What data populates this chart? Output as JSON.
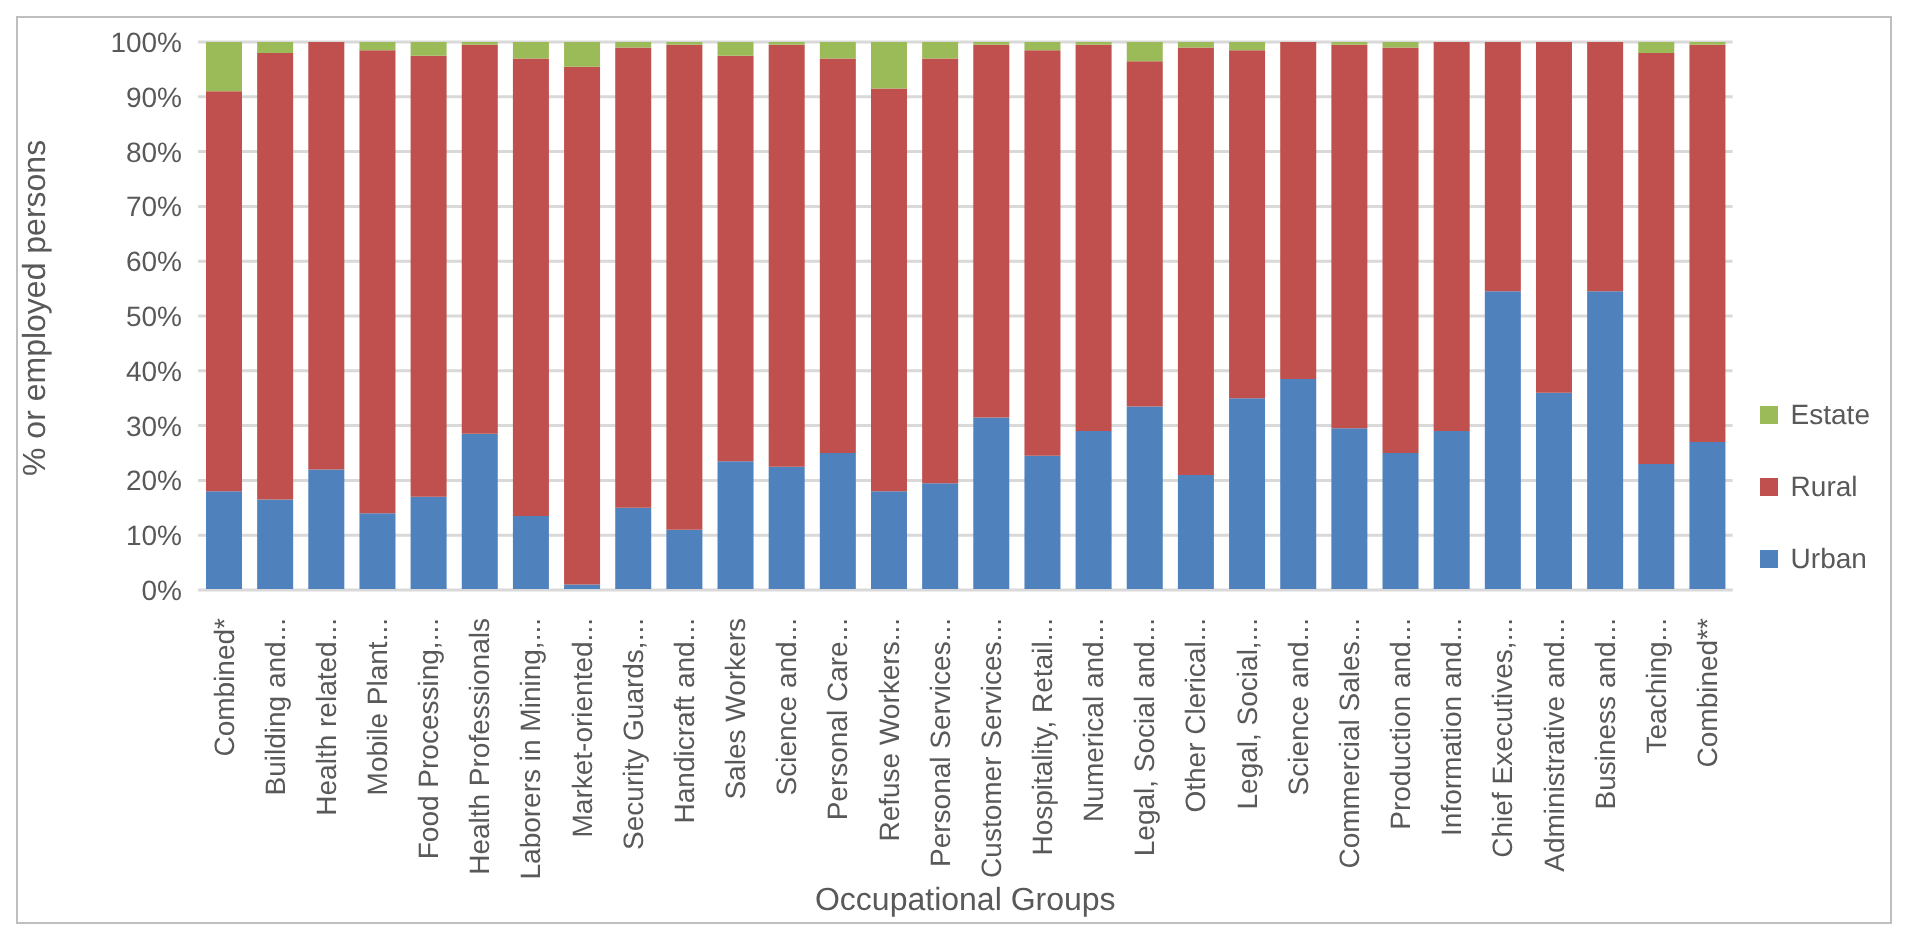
{
  "chart_data": {
    "type": "bar",
    "stacked": true,
    "xlabel": "Occupational Groups",
    "ylabel": "% or employed persons",
    "categories": [
      "Combined*",
      "Building and...",
      "Health related...",
      "Mobile Plant...",
      "Food Processing,...",
      "Health Professionals",
      "Laborers in Mining,...",
      "Market-oriented...",
      "Security Guards,...",
      "Handicraft and...",
      "Sales Workers",
      "Science and...",
      "Personal Care...",
      "Refuse Workers...",
      "Personal Services...",
      "Customer Services...",
      "Hospitality, Retail...",
      "Numerical and...",
      "Legal, Social and...",
      "Other Clerical...",
      "Legal, Social,...",
      "Science and...",
      "Commercial Sales...",
      "Production and...",
      "Information and...",
      "Chief Executives,...",
      "Administrative and...",
      "Business and...",
      "Teaching...",
      "Combined**"
    ],
    "series": [
      {
        "name": "Urban",
        "color": "#4f81bd",
        "values": [
          18,
          16.5,
          22,
          14,
          17,
          28.5,
          13.5,
          1,
          15,
          11,
          23.5,
          22.5,
          25,
          18,
          19.5,
          31.5,
          24.5,
          29,
          33.5,
          21,
          35,
          38.5,
          29.5,
          25,
          29,
          54.5,
          36,
          54.5,
          23,
          27
        ]
      },
      {
        "name": "Rural",
        "color": "#c0504d",
        "values": [
          73,
          81.5,
          78,
          84.5,
          80.5,
          71,
          83.5,
          94.5,
          84,
          88.5,
          74,
          77,
          72,
          73.5,
          77.5,
          68,
          74,
          70.5,
          63,
          78,
          63.5,
          61.5,
          70,
          74,
          71,
          45.5,
          64,
          45.5,
          75,
          72.5
        ]
      },
      {
        "name": "Estate",
        "color": "#9bbb59",
        "values": [
          9,
          2,
          0,
          1.5,
          2.5,
          0.5,
          3,
          4.5,
          1,
          0.5,
          2.5,
          0.5,
          3,
          8.5,
          3,
          0.5,
          1.5,
          0.5,
          3.5,
          1,
          1.5,
          0,
          0.5,
          1,
          0,
          0,
          0,
          0,
          2,
          0.5
        ]
      }
    ],
    "ylim": [
      0,
      100
    ],
    "yticks": [
      {
        "value": 0,
        "label": "0%"
      },
      {
        "value": 10,
        "label": "10%"
      },
      {
        "value": 20,
        "label": "20%"
      },
      {
        "value": 30,
        "label": "30%"
      },
      {
        "value": 40,
        "label": "40%"
      },
      {
        "value": 50,
        "label": "50%"
      },
      {
        "value": 60,
        "label": "60%"
      },
      {
        "value": 70,
        "label": "70%"
      },
      {
        "value": 80,
        "label": "80%"
      },
      {
        "value": 90,
        "label": "90%"
      },
      {
        "value": 100,
        "label": "100%"
      }
    ],
    "grid": "y",
    "legend": "right"
  }
}
